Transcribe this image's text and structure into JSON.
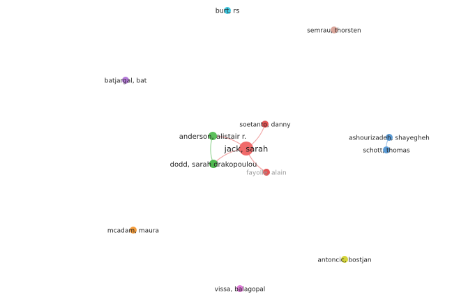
{
  "network": {
    "nodes": [
      {
        "id": "burt",
        "label": "burt, rs",
        "color": "#3ec8e0"
      },
      {
        "id": "semrau",
        "label": "semrau, thorsten",
        "color": "#d9a59a"
      },
      {
        "id": "batjargal",
        "label": "batjargal, bat",
        "color": "#b57ad9"
      },
      {
        "id": "soetanto",
        "label": "soetanto, danny",
        "color": "#e25555"
      },
      {
        "id": "anderson",
        "label": "anderson, alistair r.",
        "color": "#5cc05c"
      },
      {
        "id": "jack",
        "label": "jack, sarah",
        "color": "#f06a6a"
      },
      {
        "id": "dodd",
        "label": "dodd, sarah drakopoulou",
        "color": "#4fb84f"
      },
      {
        "id": "fayolle",
        "label": "fayolle, alain",
        "color": "#e25555",
        "muted": true
      },
      {
        "id": "ashourizadeh",
        "label": "ashourizadeh, shayegheh",
        "color": "#5b9bd5"
      },
      {
        "id": "schott",
        "label": "schott, thomas",
        "color": "#5b9bd5"
      },
      {
        "id": "mcadam",
        "label": "mcadam, maura",
        "color": "#f39c3c"
      },
      {
        "id": "antoncic",
        "label": "antoncic, bostjan",
        "color": "#d4d43a"
      },
      {
        "id": "vissa",
        "label": "vissa, balagopal",
        "color": "#e07ad9"
      }
    ],
    "links": [
      {
        "source": "jack",
        "target": "soetanto",
        "color": "#f2a8a8"
      },
      {
        "source": "jack",
        "target": "fayolle",
        "color": "#f2a8a8"
      },
      {
        "source": "jack",
        "target": "anderson",
        "color": "#f2a8a8"
      },
      {
        "source": "jack",
        "target": "dodd",
        "color": "#f2a8a8"
      },
      {
        "source": "anderson",
        "target": "dodd",
        "color": "#9ad69a"
      },
      {
        "source": "ashourizadeh",
        "target": "schott",
        "color": "#a9c8ea"
      }
    ]
  }
}
